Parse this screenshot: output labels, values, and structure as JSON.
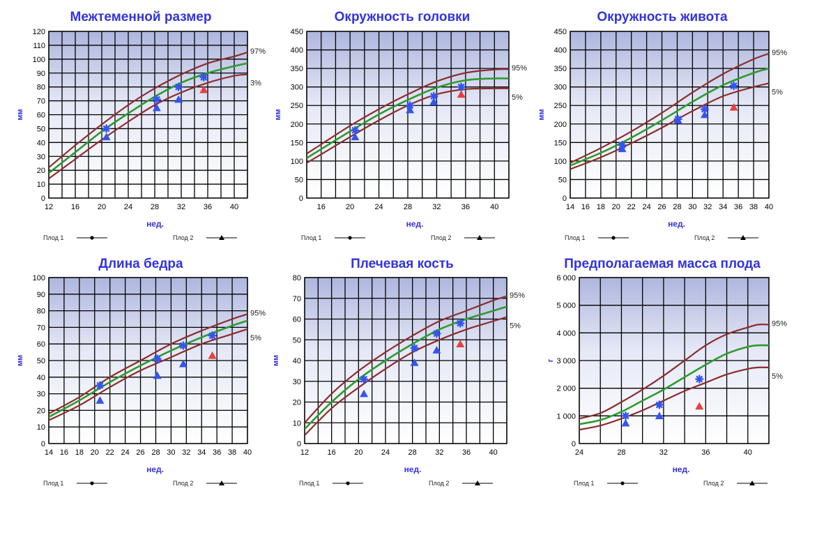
{
  "colors": {
    "title": "#3333dd",
    "upper_curve": "#8b2d2d",
    "median_curve": "#2e9a2e",
    "lower_curve": "#8b2d2d",
    "fetus1_marker": "#3355ee",
    "fetus2_marker": "#3355ee",
    "last_marker": "#e84040",
    "grid": "#000000",
    "bg_top": "#b8bfe0",
    "bg_bottom": "#ffffff"
  },
  "legend": {
    "fetus1": "Плод 1",
    "fetus2": "Плод 2"
  },
  "chart_data": [
    {
      "type": "line",
      "title": "Межтеменной размер",
      "xlabel": "нед.",
      "ylabel": "мм",
      "xlim": [
        12,
        42
      ],
      "ylim": [
        0,
        120
      ],
      "xticks": [
        12,
        16,
        20,
        24,
        28,
        32,
        36,
        40
      ],
      "yticks": [
        0,
        10,
        20,
        30,
        40,
        50,
        60,
        70,
        80,
        90,
        100,
        110,
        120
      ],
      "upper_label": "97%",
      "lower_label": "3%",
      "curves": {
        "x": [
          12,
          16,
          20,
          24,
          28,
          32,
          36,
          40,
          42
        ],
        "upper": [
          22,
          38,
          53,
          67,
          79,
          89,
          97,
          102,
          105
        ],
        "median": [
          18,
          33,
          48,
          61,
          73,
          83,
          90,
          95,
          97
        ],
        "lower": [
          14,
          28,
          42,
          55,
          67,
          76,
          83,
          88,
          89
        ]
      },
      "fetus1": [
        [
          20.7,
          50
        ],
        [
          28.3,
          71
        ],
        [
          31.6,
          80
        ],
        [
          35.4,
          87
        ]
      ],
      "fetus2": [
        [
          20.7,
          44
        ],
        [
          28.3,
          65
        ],
        [
          31.6,
          71
        ],
        [
          35.4,
          78
        ]
      ]
    },
    {
      "type": "line",
      "title": "Окружность головки",
      "xlabel": "нед.",
      "ylabel": "мм",
      "xlim": [
        14,
        42
      ],
      "ylim": [
        0,
        450
      ],
      "xticks": [
        16,
        20,
        24,
        28,
        32,
        36,
        40
      ],
      "yticks": [
        0,
        50,
        100,
        150,
        200,
        250,
        300,
        350,
        400,
        450
      ],
      "upper_label": "95%",
      "lower_label": "5%",
      "curves": {
        "x": [
          14,
          16,
          20,
          24,
          28,
          32,
          36,
          40,
          42
        ],
        "upper": [
          120,
          145,
          195,
          240,
          280,
          315,
          338,
          347,
          348
        ],
        "median": [
          108,
          132,
          180,
          226,
          265,
          298,
          318,
          323,
          323
        ],
        "lower": [
          95,
          118,
          165,
          210,
          250,
          280,
          294,
          296,
          296
        ]
      },
      "fetus1": [
        [
          20.7,
          183
        ],
        [
          28.3,
          250
        ],
        [
          31.6,
          275
        ],
        [
          35.4,
          300
        ]
      ],
      "fetus2": [
        [
          20.7,
          165
        ],
        [
          28.3,
          238
        ],
        [
          31.6,
          260
        ],
        [
          35.4,
          280
        ]
      ]
    },
    {
      "type": "line",
      "title": "Окружность живота",
      "xlabel": "нед.",
      "ylabel": "мм",
      "xlim": [
        14,
        40
      ],
      "ylim": [
        0,
        450
      ],
      "xticks": [
        14,
        16,
        18,
        20,
        22,
        24,
        26,
        28,
        30,
        32,
        34,
        36,
        38,
        40
      ],
      "yticks": [
        0,
        50,
        100,
        150,
        200,
        250,
        300,
        350,
        400,
        450
      ],
      "upper_label": "95%",
      "lower_label": "5%",
      "curves": {
        "x": [
          14,
          18,
          22,
          26,
          30,
          34,
          38,
          40
        ],
        "upper": [
          95,
          135,
          180,
          230,
          285,
          335,
          375,
          390
        ],
        "median": [
          88,
          122,
          163,
          210,
          260,
          305,
          338,
          350
        ],
        "lower": [
          78,
          110,
          148,
          190,
          235,
          275,
          300,
          310
        ]
      },
      "fetus1": [
        [
          20.8,
          143
        ],
        [
          28.1,
          213
        ],
        [
          31.6,
          240
        ],
        [
          35.4,
          303
        ]
      ],
      "fetus2": [
        [
          20.8,
          133
        ],
        [
          28.1,
          210
        ],
        [
          31.6,
          225
        ],
        [
          35.4,
          245
        ]
      ]
    },
    {
      "type": "line",
      "title": "Длина бедра",
      "xlabel": "нед.",
      "ylabel": "мм",
      "xlim": [
        14,
        40
      ],
      "ylim": [
        0,
        100
      ],
      "xticks": [
        14,
        16,
        18,
        20,
        22,
        24,
        26,
        28,
        30,
        32,
        34,
        36,
        38,
        40
      ],
      "yticks": [
        0,
        10,
        20,
        30,
        40,
        50,
        60,
        70,
        80,
        90,
        100
      ],
      "upper_label": "95%",
      "lower_label": "5%",
      "curves": {
        "x": [
          14,
          18,
          22,
          26,
          30,
          34,
          38,
          40
        ],
        "upper": [
          18,
          28,
          40,
          50,
          60,
          68,
          75,
          78
        ],
        "median": [
          16,
          26,
          37,
          47,
          56,
          64,
          71,
          74
        ],
        "lower": [
          14,
          23,
          34,
          44,
          52,
          60,
          66,
          69
        ]
      },
      "fetus1": [
        [
          20.7,
          35
        ],
        [
          28.2,
          51
        ],
        [
          31.6,
          59
        ],
        [
          35.4,
          65
        ]
      ],
      "fetus2": [
        [
          20.7,
          26
        ],
        [
          28.2,
          41
        ],
        [
          31.6,
          48
        ],
        [
          35.4,
          53
        ]
      ]
    },
    {
      "type": "line",
      "title": "Плечевая кость",
      "xlabel": "нед.",
      "ylabel": "мм",
      "xlim": [
        12,
        42
      ],
      "ylim": [
        0,
        80
      ],
      "xticks": [
        12,
        16,
        20,
        24,
        28,
        32,
        36,
        40
      ],
      "yticks": [
        0,
        10,
        20,
        30,
        40,
        50,
        60,
        70,
        80
      ],
      "upper_label": "95%",
      "lower_label": "5%",
      "curves": {
        "x": [
          12,
          16,
          20,
          24,
          28,
          32,
          36,
          40,
          42
        ],
        "upper": [
          10,
          24,
          35,
          44,
          52,
          59,
          64,
          69,
          71
        ],
        "median": [
          7,
          20,
          31,
          40,
          48,
          55,
          60,
          64,
          66
        ],
        "lower": [
          4,
          17,
          27,
          36,
          44,
          50,
          55,
          59,
          61
        ]
      },
      "fetus1": [
        [
          20.8,
          31
        ],
        [
          28.3,
          46
        ],
        [
          31.6,
          53
        ],
        [
          35.1,
          58
        ]
      ],
      "fetus2": [
        [
          20.8,
          24
        ],
        [
          28.3,
          39
        ],
        [
          31.6,
          45
        ],
        [
          35.1,
          48
        ]
      ]
    },
    {
      "type": "line",
      "title": "Предполагаемая масса плода",
      "xlabel": "нед.",
      "ylabel": "г",
      "xlim": [
        24,
        42
      ],
      "ylim": [
        0,
        6000
      ],
      "xticks": [
        24,
        28,
        32,
        36,
        40
      ],
      "yticks": [
        0,
        1000,
        2000,
        3000,
        4000,
        5000,
        6000
      ],
      "ytick_labels": [
        "0",
        "1 000",
        "2 000",
        "3 000",
        "4 000",
        "5 000",
        "6 000"
      ],
      "upper_label": "95%",
      "lower_label": "5%",
      "curves": {
        "x": [
          24,
          26,
          28,
          30,
          32,
          34,
          36,
          38,
          40,
          41,
          42
        ],
        "upper": [
          900,
          1100,
          1500,
          1950,
          2450,
          3000,
          3550,
          3950,
          4200,
          4300,
          4300
        ],
        "median": [
          700,
          850,
          1150,
          1550,
          1950,
          2400,
          2850,
          3250,
          3500,
          3550,
          3550
        ],
        "lower": [
          500,
          650,
          900,
          1200,
          1550,
          1900,
          2200,
          2500,
          2700,
          2750,
          2750
        ]
      },
      "fetus1": [
        [
          28.4,
          1000
        ],
        [
          31.6,
          1400
        ],
        [
          35.4,
          2330
        ]
      ],
      "fetus2": [
        [
          28.4,
          740
        ],
        [
          31.6,
          1000
        ],
        [
          35.4,
          1350
        ]
      ]
    }
  ]
}
